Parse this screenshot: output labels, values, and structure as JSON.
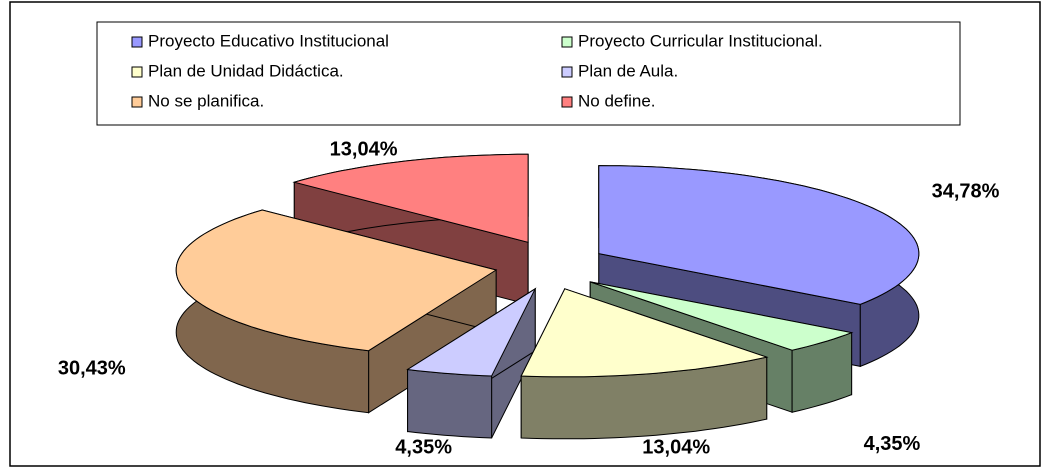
{
  "chart_data": {
    "type": "pie",
    "categories": [
      "Proyecto Educativo Institucional",
      "Proyecto Curricular Institucional.",
      "Plan de Unidad Didáctica.",
      "Plan de Aula.",
      "No se planifica.",
      "No define."
    ],
    "values": [
      34.78,
      4.35,
      13.04,
      4.35,
      30.43,
      13.04
    ],
    "value_labels": [
      "34,78%",
      "4,35%",
      "13,04%",
      "4,35%",
      "30,43%",
      "13,04%"
    ],
    "colors": [
      "#9999ff",
      "#ccffcc",
      "#ffffcc",
      "#ccccff",
      "#ffcc99",
      "#ff8080"
    ],
    "legend": "top"
  }
}
